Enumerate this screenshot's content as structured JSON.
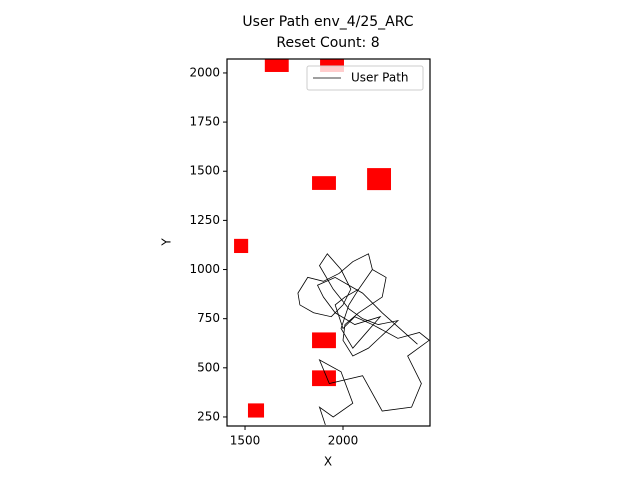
{
  "chart_data": {
    "type": "line",
    "title": "User Path env_4/25_ARC",
    "subtitle": "Reset Count: 8",
    "x_label": "X",
    "y_label": "Y",
    "xlim": [
      1408,
      2444
    ],
    "ylim": [
      204,
      2071
    ],
    "xticks": [
      1500,
      2000
    ],
    "yticks": [
      250,
      500,
      750,
      1000,
      1250,
      1500,
      1750,
      2000
    ],
    "legend_position": "upper right",
    "series": [
      {
        "name": "User Path",
        "color": "#000000",
        "x": [
          1910,
          1880,
          1950,
          2050,
          1990,
          1880,
          1930,
          2100,
          2200,
          2350,
          2400,
          2330,
          2440,
          2390,
          2280,
          2150,
          2060,
          2000,
          1960,
          2010,
          2080,
          2150,
          2130,
          2050,
          1980,
          1900,
          1820,
          1770,
          1780,
          1850,
          1940,
          2000,
          2040,
          1990,
          1920,
          1880,
          1950,
          2030,
          2100,
          2180,
          2280,
          2130,
          2050,
          2000,
          2010,
          2080,
          2200,
          2220,
          2150,
          2080,
          2030,
          1990,
          2050,
          2120,
          2190,
          2060,
          1960,
          1900,
          1870,
          1960,
          2100,
          2200,
          2380
        ],
        "values": [
          210,
          300,
          250,
          320,
          480,
          540,
          420,
          460,
          280,
          300,
          420,
          560,
          640,
          680,
          650,
          720,
          760,
          700,
          820,
          860,
          900,
          1000,
          1080,
          1040,
          980,
          940,
          960,
          880,
          820,
          780,
          760,
          820,
          900,
          1000,
          1080,
          1020,
          900,
          800,
          750,
          720,
          740,
          600,
          560,
          640,
          720,
          780,
          860,
          960,
          1000,
          900,
          820,
          700,
          600,
          680,
          760,
          720,
          780,
          860,
          920,
          960,
          880,
          780,
          620
        ]
      }
    ],
    "obstacles_color": "#ff0000",
    "obstacles": [
      {
        "x": 1662,
        "y": 2050,
        "width": 122,
        "height": 90
      },
      {
        "x": 1944,
        "y": 2050,
        "width": 122,
        "height": 90
      },
      {
        "x": 1903,
        "y": 1440,
        "width": 122,
        "height": 70
      },
      {
        "x": 2184,
        "y": 1460,
        "width": 122,
        "height": 112
      },
      {
        "x": 1480,
        "y": 1120,
        "width": 72,
        "height": 72
      },
      {
        "x": 1903,
        "y": 640,
        "width": 122,
        "height": 80
      },
      {
        "x": 1903,
        "y": 447,
        "width": 122,
        "height": 80
      },
      {
        "x": 1556,
        "y": 283,
        "width": 82,
        "height": 72
      }
    ]
  }
}
